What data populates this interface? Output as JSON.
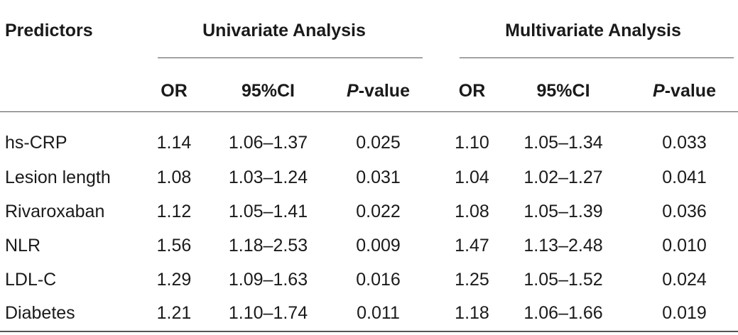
{
  "table": {
    "header": {
      "predictors": "Predictors",
      "univariate": "Univariate Analysis",
      "multivariate": "Multivariate Analysis",
      "or": "OR",
      "ci": "95%CI",
      "p_italic": "P",
      "p_suffix": "-value"
    },
    "rows": [
      {
        "predictor": "hs-CRP",
        "uni_or": "1.14",
        "uni_ci": "1.06–1.37",
        "uni_p": "0.025",
        "multi_or": "1.10",
        "multi_ci": "1.05–1.34",
        "multi_p": "0.033"
      },
      {
        "predictor": "Lesion length",
        "uni_or": "1.08",
        "uni_ci": "1.03–1.24",
        "uni_p": "0.031",
        "multi_or": "1.04",
        "multi_ci": "1.02–1.27",
        "multi_p": "0.041"
      },
      {
        "predictor": "Rivaroxaban",
        "uni_or": "1.12",
        "uni_ci": "1.05–1.41",
        "uni_p": "0.022",
        "multi_or": "1.08",
        "multi_ci": "1.05–1.39",
        "multi_p": "0.036"
      },
      {
        "predictor": "NLR",
        "uni_or": "1.56",
        "uni_ci": "1.18–2.53",
        "uni_p": "0.009",
        "multi_or": "1.47",
        "multi_ci": "1.13–2.48",
        "multi_p": "0.010"
      },
      {
        "predictor": "LDL-C",
        "uni_or": "1.29",
        "uni_ci": "1.09–1.63",
        "uni_p": "0.016",
        "multi_or": "1.25",
        "multi_ci": "1.05–1.52",
        "multi_p": "0.024"
      },
      {
        "predictor": "Diabetes",
        "uni_or": "1.21",
        "uni_ci": "1.10–1.74",
        "uni_p": "0.011",
        "multi_or": "1.18",
        "multi_ci": "1.06–1.66",
        "multi_p": "0.019"
      }
    ]
  }
}
